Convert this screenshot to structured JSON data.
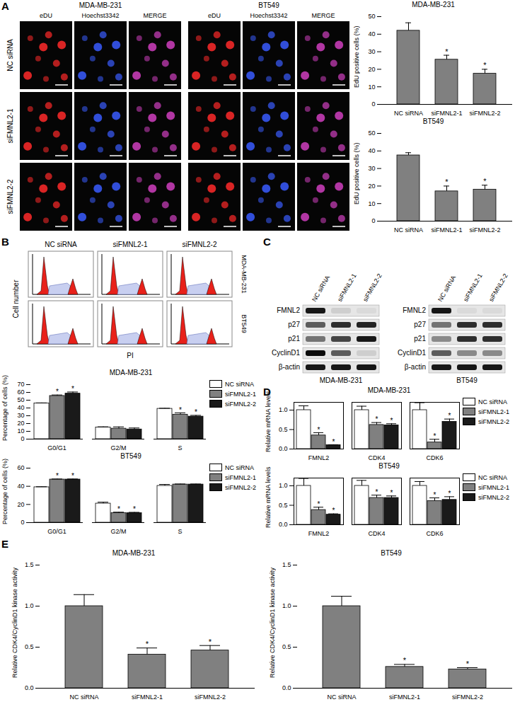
{
  "panels": [
    "A",
    "B",
    "C",
    "D",
    "E"
  ],
  "microscopy": {
    "cell_lines": [
      "MDA-MB-231",
      "BT549"
    ],
    "channels": [
      "eDU",
      "Hoechst3342",
      "MERGE"
    ],
    "rows": [
      "NC siRNA",
      "siFMNL2-1",
      "siFMNL2-2"
    ]
  },
  "flow_histograms": {
    "columns": [
      "NC siRNA",
      "siFMNL2-1",
      "siFMNL2-2"
    ],
    "rows": [
      "MDA-MB-231",
      "BT549"
    ],
    "x_label": "PI",
    "y_label": "Cell number"
  },
  "blots": [
    {
      "cell_line": "MDA-MB-231",
      "lanes": [
        "NC siRNA",
        "siFMNL2-1",
        "siFMNL2-2"
      ],
      "proteins": [
        "FMNL2",
        "p27",
        "p21",
        "CyclinD1",
        "β-actin"
      ],
      "band_intensity": [
        [
          0.9,
          0.1,
          0.05
        ],
        [
          0.6,
          0.8,
          0.85
        ],
        [
          0.5,
          0.7,
          0.9
        ],
        [
          0.95,
          0.6,
          0.1
        ],
        [
          0.9,
          0.9,
          0.9
        ]
      ]
    },
    {
      "cell_line": "BT549",
      "lanes": [
        "NC siRNA",
        "siFMNL2-1",
        "siFMNL2-2"
      ],
      "proteins": [
        "FMNL2",
        "p27",
        "p21",
        "CyclinD1",
        "β-actin"
      ],
      "band_intensity": [
        [
          0.9,
          0.05,
          0.05
        ],
        [
          0.5,
          0.8,
          0.8
        ],
        [
          0.4,
          0.8,
          0.8
        ],
        [
          0.6,
          0.4,
          0.4
        ],
        [
          0.9,
          0.9,
          0.9
        ]
      ]
    }
  ],
  "chart_data": [
    {
      "type": "bar",
      "title": "MDA-MB-231",
      "y_label": "EdU positive cells (%)",
      "categories": [
        "NC siRNA",
        "siFMNL2-1",
        "siFMNL2-2"
      ],
      "values": [
        42,
        25.5,
        17.5
      ],
      "errors": [
        4.5,
        2.5,
        2.5
      ],
      "annotations": [
        null,
        "*",
        "*"
      ],
      "color": "#808080",
      "ylim": [
        0,
        50
      ],
      "yticks": [
        0,
        10,
        20,
        30,
        40,
        50
      ]
    },
    {
      "type": "bar",
      "title": "BT549",
      "y_label": "EdU positive cells (%)",
      "categories": [
        "NC siRNA",
        "siFMNL2-1",
        "siFMNL2-2"
      ],
      "values": [
        37.5,
        17,
        18
      ],
      "errors": [
        1.5,
        3,
        2.5
      ],
      "annotations": [
        null,
        "*",
        "*"
      ],
      "color": "#808080",
      "ylim": [
        0,
        50
      ],
      "yticks": [
        0,
        10,
        20,
        30,
        40,
        50
      ]
    },
    {
      "type": "bar",
      "title": "MDA-MB-231",
      "y_label": "Percentage of cells (%)",
      "categories": [
        "G0/G1",
        "G2/M",
        "S"
      ],
      "series": [
        {
          "name": "NC siRNA",
          "color": "#ffffff",
          "values": [
            46,
            15,
            39
          ],
          "errors": [
            0.5,
            0.8,
            0.6
          ],
          "annotations": [
            null,
            null,
            null
          ]
        },
        {
          "name": "siFMNL2-1",
          "color": "#808080",
          "values": [
            55.5,
            13.5,
            31.5
          ],
          "errors": [
            1.2,
            2.2,
            2.2
          ],
          "annotations": [
            "*",
            null,
            "*"
          ]
        },
        {
          "name": "siFMNL2-2",
          "color": "#1a1a1a",
          "values": [
            58.5,
            12.5,
            29
          ],
          "errors": [
            2,
            1.8,
            1.5
          ],
          "annotations": [
            "*",
            null,
            "*"
          ]
        }
      ],
      "legend": "top-right",
      "ylim": [
        0,
        70
      ],
      "yticks": [
        0,
        10,
        20,
        30,
        40,
        50,
        60,
        70
      ]
    },
    {
      "type": "bar",
      "title": "BT549",
      "y_label": "Percentage of cells (%)",
      "categories": [
        "G0/G1",
        "G2/M",
        "S"
      ],
      "series": [
        {
          "name": "NC siRNA",
          "color": "#ffffff",
          "values": [
            39,
            21,
            40.5
          ],
          "errors": [
            0.5,
            1.5,
            1.5
          ],
          "annotations": [
            null,
            null,
            null
          ]
        },
        {
          "name": "siFMNL2-1",
          "color": "#808080",
          "values": [
            47.5,
            10.5,
            42
          ],
          "errors": [
            0.5,
            1,
            0.5
          ],
          "annotations": [
            "*",
            "*",
            null
          ]
        },
        {
          "name": "siFMNL2-2",
          "color": "#1a1a1a",
          "values": [
            47.5,
            10.5,
            42
          ],
          "errors": [
            0.5,
            0.8,
            0.5
          ],
          "annotations": [
            "*",
            "*",
            null
          ]
        }
      ],
      "legend": "top-right",
      "ylim": [
        0,
        60
      ],
      "yticks": [
        0,
        20,
        40,
        60
      ]
    },
    {
      "type": "bar",
      "title": "MDA-MB-231",
      "y_label": "Relative mRNA levels",
      "categories": [
        "FMNL2",
        "CDK4",
        "CDK6"
      ],
      "series": [
        {
          "name": "NC siRNA",
          "color": "#ffffff",
          "values": [
            1,
            1,
            1
          ],
          "errors": [
            0.11,
            0.1,
            0.19
          ],
          "annotations": [
            null,
            null,
            null
          ]
        },
        {
          "name": "siFMNL2-1",
          "color": "#808080",
          "values": [
            0.35,
            0.62,
            0.17
          ],
          "errors": [
            0.07,
            0.06,
            0.08
          ],
          "annotations": [
            "*",
            "*",
            "*"
          ]
        },
        {
          "name": "siFMNL2-2",
          "color": "#1a1a1a",
          "values": [
            0.1,
            0.61,
            0.7
          ],
          "errors": [
            0.01,
            0.04,
            0.07
          ],
          "annotations": [
            "*",
            "*",
            "*"
          ]
        }
      ],
      "legend": "top-right",
      "ylim": [
        0,
        1.2
      ],
      "yticks": [
        {
          "value": 0,
          "label": "0.0"
        },
        {
          "value": 0.5,
          "label": "0.5"
        },
        {
          "value": 1,
          "label": "1.0"
        }
      ]
    },
    {
      "type": "bar",
      "title": "BT549",
      "y_label": "Relative mRNA levels",
      "categories": [
        "FMNL2",
        "CDK4",
        "CDK6"
      ],
      "series": [
        {
          "name": "NC siRNA",
          "color": "#ffffff",
          "values": [
            1,
            1,
            1
          ],
          "errors": [
            0.19,
            0.14,
            0.11
          ],
          "annotations": [
            null,
            null,
            null
          ]
        },
        {
          "name": "siFMNL2-1",
          "color": "#808080",
          "values": [
            0.38,
            0.69,
            0.61
          ],
          "errors": [
            0.07,
            0.07,
            0.08
          ],
          "annotations": [
            "*",
            "*",
            "*"
          ]
        },
        {
          "name": "siFMNL2-2",
          "color": "#1a1a1a",
          "values": [
            0.26,
            0.69,
            0.64
          ],
          "errors": [
            0.02,
            0.05,
            0.08
          ],
          "annotations": [
            "*",
            "*",
            "*"
          ]
        }
      ],
      "legend": "top-right",
      "ylim": [
        0,
        1.2
      ],
      "yticks": [
        {
          "value": 0,
          "label": "0.0"
        },
        {
          "value": 0.5,
          "label": "0.5"
        },
        {
          "value": 1,
          "label": "1.0"
        }
      ]
    },
    {
      "type": "bar",
      "title": "MDA-MB-231",
      "y_label": "Relative CDK4/CyclinD1 kinase activity",
      "categories": [
        "NC siRNA",
        "siFMNL2-1",
        "siFMNL2-2"
      ],
      "values": [
        1,
        0.41,
        0.46
      ],
      "errors": [
        0.14,
        0.08,
        0.06
      ],
      "annotations": [
        null,
        "*",
        "*"
      ],
      "color": "#808080",
      "ylim": [
        0,
        1.5
      ],
      "yticks": [
        {
          "value": 0,
          "label": "0.0"
        },
        {
          "value": 0.5,
          "label": "0.5"
        },
        {
          "value": 1,
          "label": "1.0"
        },
        {
          "value": 1.5,
          "label": "1.5"
        }
      ]
    },
    {
      "type": "bar",
      "title": "BT549",
      "y_label": "Relative CDK4/CyclinD1 kinase activity",
      "categories": [
        "NC siRNA",
        "siFMNL2-1",
        "siFMNL2-2"
      ],
      "values": [
        1,
        0.26,
        0.23
      ],
      "errors": [
        0.12,
        0.03,
        0.02
      ],
      "annotations": [
        null,
        "*",
        "*"
      ],
      "color": "#808080",
      "ylim": [
        0,
        1.5
      ],
      "yticks": [
        {
          "value": 0,
          "label": "0.0"
        },
        {
          "value": 0.5,
          "label": "0.5"
        },
        {
          "value": 1,
          "label": "1.0"
        },
        {
          "value": 1.5,
          "label": "1.5"
        }
      ]
    }
  ]
}
